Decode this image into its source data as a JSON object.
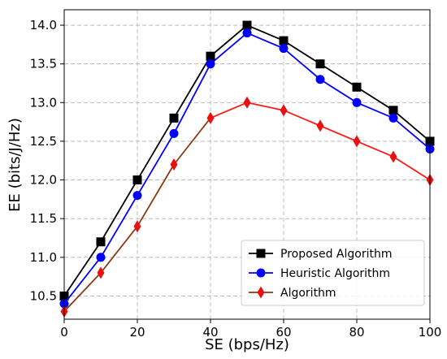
{
  "chart_data": {
    "type": "line",
    "title": "",
    "xlabel": "SE (bps/Hz)",
    "ylabel": "EE (bits/J/Hz)",
    "xlim": [
      0,
      100
    ],
    "ylim": [
      10.2,
      14.2
    ],
    "x_ticks": [
      "0",
      "20",
      "40",
      "60",
      "80",
      "100"
    ],
    "y_ticks": [
      "10.5",
      "11.0",
      "11.5",
      "12.0",
      "12.5",
      "13.0",
      "13.5",
      "14.0"
    ],
    "grid": true,
    "legend_position": "lower-right",
    "x": [
      0,
      10,
      20,
      30,
      40,
      50,
      60,
      70,
      80,
      90,
      100
    ],
    "series": [
      {
        "name": "Proposed Algorithm",
        "marker": "square",
        "color": "#000000",
        "marker_color": "#000000",
        "values": [
          10.5,
          11.2,
          12.0,
          12.8,
          13.6,
          14.0,
          13.8,
          13.5,
          13.2,
          12.9,
          12.5
        ]
      },
      {
        "name": "Heuristic Algorithm",
        "marker": "circle",
        "color": "#0000ff",
        "marker_color": "#0000ff",
        "values": [
          10.4,
          11.0,
          11.8,
          12.6,
          13.5,
          13.9,
          13.7,
          13.3,
          13.0,
          12.8,
          12.4
        ]
      },
      {
        "name": "Algorithm",
        "marker": "diamond",
        "color": "#8b3a0f",
        "secondary_color": "#ff1a1a",
        "marker_color": "#e81010",
        "values": [
          10.3,
          10.8,
          11.4,
          12.2,
          12.8,
          13.0,
          12.9,
          12.7,
          12.5,
          12.3,
          12.0
        ]
      }
    ]
  }
}
